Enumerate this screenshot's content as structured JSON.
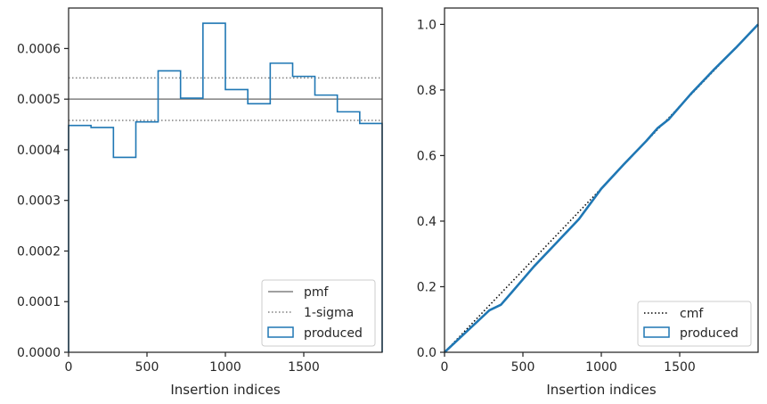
{
  "chart_data": [
    {
      "type": "histogram",
      "xlabel": "Insertion indices",
      "ylabel": "",
      "xlim": [
        0,
        2000
      ],
      "ylim": [
        0,
        0.00068
      ],
      "xticks": [
        0,
        500,
        1000,
        1500
      ],
      "xtick_labels": [
        "0",
        "500",
        "1000",
        "1500"
      ],
      "yticks": [
        0,
        0.0001,
        0.0002,
        0.0003,
        0.0004,
        0.0005,
        0.0006
      ],
      "ytick_labels": [
        "0.0000",
        "0.0001",
        "0.0002",
        "0.0003",
        "0.0004",
        "0.0005",
        "0.0006"
      ],
      "grid": false,
      "legend": "lower-right",
      "series": [
        {
          "name": "produced",
          "style": "step",
          "color": "#1f77b4",
          "bin_edges": [
            0,
            143,
            286,
            429,
            571,
            714,
            857,
            1000,
            1143,
            1286,
            1429,
            1571,
            1714,
            1857,
            2000
          ],
          "values": [
            0.000448,
            0.000444,
            0.000385,
            0.000455,
            0.000556,
            0.000502,
            0.00065,
            0.000519,
            0.000491,
            0.000571,
            0.000545,
            0.000508,
            0.000475,
            0.000452
          ]
        }
      ],
      "reference_lines": [
        {
          "name": "pmf",
          "y": 0.0005,
          "style": "solid",
          "color": "#808080"
        },
        {
          "name": "1-sigma",
          "y": [
            0.000542,
            0.000458
          ],
          "style": "dotted",
          "color": "#808080"
        }
      ]
    },
    {
      "type": "line",
      "xlabel": "Insertion indices",
      "ylabel": "",
      "xlim": [
        0,
        2000
      ],
      "ylim": [
        0,
        1.05
      ],
      "xticks": [
        0,
        500,
        1000,
        1500
      ],
      "xtick_labels": [
        "0",
        "500",
        "1000",
        "1500"
      ],
      "yticks": [
        0,
        0.2,
        0.4,
        0.6,
        0.8,
        1.0
      ],
      "ytick_labels": [
        "0.0",
        "0.2",
        "0.4",
        "0.6",
        "0.8",
        "1.0"
      ],
      "grid": false,
      "legend": "lower-right",
      "series": [
        {
          "name": "cmf",
          "style": "dotted",
          "color": "#000000",
          "x": [
            0,
            2000
          ],
          "y": [
            0,
            1.0
          ]
        },
        {
          "name": "produced",
          "style": "solid",
          "color": "#1f77b4",
          "x": [
            0,
            143,
            286,
            360,
            429,
            571,
            714,
            857,
            1000,
            1143,
            1286,
            1360,
            1429,
            1571,
            1714,
            1857,
            2000
          ],
          "y": [
            0,
            0.064,
            0.128,
            0.145,
            0.183,
            0.262,
            0.334,
            0.406,
            0.499,
            0.573,
            0.644,
            0.684,
            0.71,
            0.788,
            0.86,
            0.928,
            1.0
          ]
        }
      ]
    }
  ]
}
